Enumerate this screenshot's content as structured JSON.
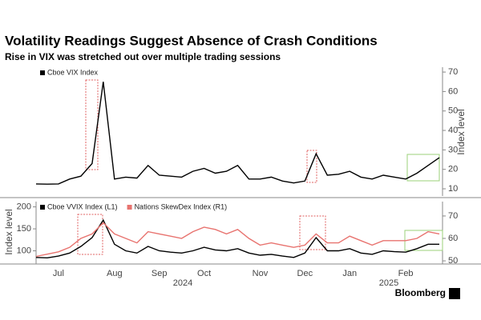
{
  "source": "Bloomberg",
  "chart_data": [
    {
      "type": "line",
      "title": "Volatility Readings Suggest Absence of Crash Conditions",
      "subtitle": "Rise in VIX was stretched out over multiple trading sessions",
      "y_label": "Index level",
      "y_side": "right",
      "ylim": [
        6.3,
        72.5
      ],
      "yticks": [
        10,
        20,
        30,
        40,
        50,
        60,
        70
      ],
      "series": [
        {
          "name": "Cboe VIX Index",
          "color": "#000000",
          "values": [
            12.5,
            12.4,
            12.5,
            15,
            16.5,
            23,
            65,
            15,
            16,
            15.5,
            22,
            17,
            16.5,
            16,
            19,
            20.5,
            18,
            19,
            22,
            15,
            15,
            16,
            14,
            13,
            14,
            28,
            17,
            17.5,
            19,
            16,
            15,
            17,
            16,
            15,
            18,
            22,
            26
          ]
        }
      ]
    },
    {
      "type": "line",
      "y_label": "Index level",
      "ylim": [
        70,
        212
      ],
      "yticks": [
        100,
        150,
        200
      ],
      "y2lim": [
        48.6,
        76.4
      ],
      "y2ticks": [
        50,
        60,
        70
      ],
      "categories": [
        null,
        null,
        "Jul",
        null,
        null,
        null,
        null,
        "Aug",
        null,
        null,
        null,
        "Sep",
        null,
        null,
        null,
        "Oct",
        null,
        null,
        null,
        null,
        "Nov",
        null,
        null,
        null,
        "Dec",
        null,
        null,
        null,
        "Jan",
        null,
        null,
        null,
        null,
        "Feb",
        null,
        null,
        null
      ],
      "year_labels": [
        "2024",
        "2025"
      ],
      "series": [
        {
          "name": "Cboe VVIX Index (L1)",
          "color": "#000000",
          "axis": "y",
          "values": [
            85,
            84,
            88,
            95,
            110,
            130,
            170,
            115,
            100,
            95,
            110,
            100,
            97,
            95,
            100,
            108,
            102,
            100,
            105,
            95,
            90,
            92,
            88,
            85,
            95,
            130,
            100,
            100,
            105,
            95,
            92,
            100,
            98,
            97,
            105,
            115,
            115
          ]
        },
        {
          "name": "Nations SkewDex Index (R1)",
          "color": "#e8736f",
          "axis": "y2",
          "values": [
            52,
            53,
            54,
            56,
            60,
            62,
            67,
            62,
            60,
            58,
            63,
            62,
            61,
            60,
            63,
            65,
            64,
            62,
            64,
            60,
            57,
            58,
            57,
            56,
            57,
            62,
            58,
            58,
            61,
            59,
            57,
            59,
            59,
            59,
            60,
            63,
            62
          ]
        }
      ]
    }
  ]
}
